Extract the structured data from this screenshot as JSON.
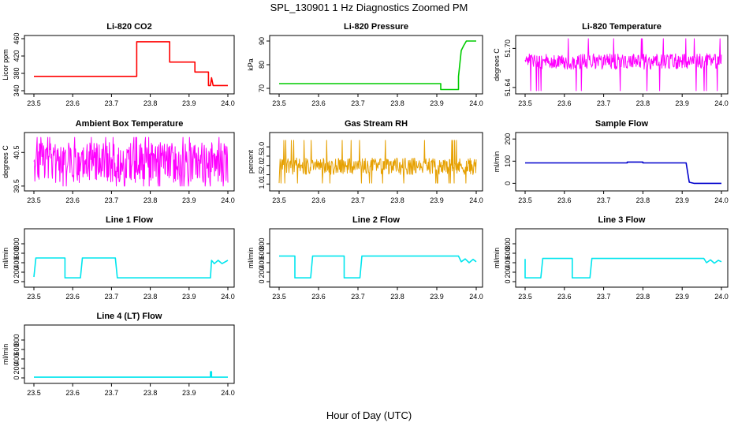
{
  "figure": {
    "title": "SPL_130901  1 Hz Diagnostics Zoomed PM",
    "xlabel": "Hour of Day (UTC)"
  },
  "chart_data": [
    {
      "type": "line",
      "title": "Li-820 CO2",
      "ylabel": "Licor ppm",
      "color": "#ff0000",
      "xlim": [
        23.5,
        24.0
      ],
      "ylim": [
        340,
        460
      ],
      "xticks": [
        "23.5",
        "23.6",
        "23.7",
        "23.8",
        "23.9",
        "24.0"
      ],
      "yticks": [
        "340",
        "380",
        "420",
        "460"
      ],
      "series": [
        {
          "name": "CO2",
          "style": "step",
          "x": [
            23.5,
            23.765,
            23.765,
            23.85,
            23.85,
            23.915,
            23.915,
            23.95,
            23.95,
            23.955,
            23.958,
            23.962,
            24.0
          ],
          "y": [
            373,
            373,
            453,
            453,
            406,
            406,
            383,
            383,
            352,
            352,
            370,
            352,
            352
          ]
        }
      ]
    },
    {
      "type": "line",
      "title": "Li-820 Pressure",
      "ylabel": "kPa",
      "color": "#00cc00",
      "xlim": [
        23.5,
        24.0
      ],
      "ylim": [
        69,
        91
      ],
      "xticks": [
        "23.5",
        "23.6",
        "23.7",
        "23.8",
        "23.9",
        "24.0"
      ],
      "yticks": [
        "70",
        "80",
        "90"
      ],
      "series": [
        {
          "name": "Pressure",
          "style": "step",
          "x": [
            23.5,
            23.91,
            23.91,
            23.955,
            23.955,
            23.962,
            23.968,
            23.975,
            24.0
          ],
          "y": [
            72,
            72,
            69.5,
            69.5,
            75,
            86,
            88,
            90,
            90
          ]
        }
      ]
    },
    {
      "type": "line",
      "title": "Li-820 Temperature",
      "ylabel": "degrees C",
      "color": "#ff00ff",
      "xlim": [
        23.5,
        24.0
      ],
      "ylim": [
        51.635,
        51.715
      ],
      "xticks": [
        "23.5",
        "23.6",
        "23.7",
        "23.8",
        "23.9",
        "24.0"
      ],
      "yticks": [
        "51.64",
        "51.70"
      ],
      "series": [
        {
          "name": "Temperature",
          "style": "noise",
          "x": [
            23.5,
            24.0
          ],
          "center": 51.68,
          "amp": 0.012,
          "low": 51.635,
          "high": 51.715,
          "n": 420
        }
      ]
    },
    {
      "type": "line",
      "title": "Ambient Box Temperature",
      "ylabel": "degrees C",
      "color": "#ff00ff",
      "xlim": [
        23.5,
        24.0
      ],
      "ylim": [
        39.45,
        41.0
      ],
      "xticks": [
        "23.5",
        "23.6",
        "23.7",
        "23.8",
        "23.9",
        "24.0"
      ],
      "yticks": [
        "39.5",
        "40.5"
      ],
      "series": [
        {
          "name": "Ambient",
          "style": "noise",
          "x": [
            23.5,
            24.0
          ],
          "center": 40.2,
          "amp": 0.6,
          "low": 39.5,
          "high": 40.95,
          "n": 420
        }
      ]
    },
    {
      "type": "line",
      "title": "Gas Stream RH",
      "ylabel": "percent",
      "color": "#e6a000",
      "xlim": [
        23.5,
        24.0
      ],
      "ylim": [
        0.8,
        3.6
      ],
      "xticks": [
        "23.5",
        "23.6",
        "23.7",
        "23.8",
        "23.9",
        "24.0"
      ],
      "yticks": [
        "1.0",
        "1.5",
        "2.0",
        "2.5",
        "3.0"
      ],
      "series": [
        {
          "name": "RH",
          "style": "noise",
          "x": [
            23.5,
            24.0
          ],
          "center": 1.95,
          "amp": 0.45,
          "low": 1.05,
          "high": 3.35,
          "n": 420
        }
      ]
    },
    {
      "type": "line",
      "title": "Sample Flow",
      "ylabel": "ml/min",
      "color": "#0000cc",
      "xlim": [
        23.5,
        24.0
      ],
      "ylim": [
        -20,
        215
      ],
      "xticks": [
        "23.5",
        "23.6",
        "23.7",
        "23.8",
        "23.9",
        "24.0"
      ],
      "yticks": [
        "0",
        "100",
        "200"
      ],
      "series": [
        {
          "name": "Flow",
          "style": "step",
          "x": [
            23.5,
            23.76,
            23.76,
            23.8,
            23.8,
            23.91,
            23.918,
            23.93,
            24.0
          ],
          "y": [
            92,
            92,
            96,
            96,
            92,
            92,
            5,
            0,
            0
          ]
        }
      ]
    },
    {
      "type": "line",
      "title": "Line 1 Flow",
      "ylabel": "ml/min",
      "color": "#00e5ee",
      "xlim": [
        23.5,
        24.0
      ],
      "ylim": [
        -50,
        1050
      ],
      "xticks": [
        "23.5",
        "23.6",
        "23.7",
        "23.8",
        "23.9",
        "24.0"
      ],
      "yticks": [
        "0",
        "200",
        "400",
        "600",
        "800"
      ],
      "series": [
        {
          "name": "Line1",
          "style": "step",
          "x": [
            23.5,
            23.505,
            23.58,
            23.58,
            23.62,
            23.625,
            23.71,
            23.715,
            23.955,
            23.958,
            23.965,
            23.975,
            23.985,
            24.0
          ],
          "y": [
            100,
            500,
            500,
            80,
            80,
            500,
            500,
            80,
            80,
            450,
            380,
            450,
            380,
            450
          ]
        }
      ]
    },
    {
      "type": "line",
      "title": "Line 2 Flow",
      "ylabel": "ml/min",
      "color": "#00e5ee",
      "xlim": [
        23.5,
        24.0
      ],
      "ylim": [
        -50,
        1050
      ],
      "xticks": [
        "23.5",
        "23.6",
        "23.7",
        "23.8",
        "23.9",
        "24.0"
      ],
      "yticks": [
        "0",
        "200",
        "400",
        "600",
        "800"
      ],
      "series": [
        {
          "name": "Line2",
          "style": "step",
          "x": [
            23.5,
            23.54,
            23.54,
            23.58,
            23.585,
            23.665,
            23.665,
            23.705,
            23.71,
            23.955,
            23.962,
            23.972,
            23.982,
            23.992,
            24.0
          ],
          "y": [
            540,
            540,
            80,
            80,
            540,
            540,
            80,
            80,
            540,
            540,
            420,
            480,
            400,
            470,
            420
          ]
        }
      ]
    },
    {
      "type": "line",
      "title": "Line 3 Flow",
      "ylabel": "ml/min",
      "color": "#00e5ee",
      "xlim": [
        23.5,
        24.0
      ],
      "ylim": [
        -50,
        1050
      ],
      "xticks": [
        "23.5",
        "23.6",
        "23.7",
        "23.8",
        "23.9",
        "24.0"
      ],
      "yticks": [
        "0",
        "200",
        "400",
        "600",
        "800"
      ],
      "series": [
        {
          "name": "Line3",
          "style": "step",
          "x": [
            23.5,
            23.5,
            23.54,
            23.545,
            23.62,
            23.62,
            23.665,
            23.67,
            23.955,
            23.962,
            23.972,
            23.982,
            23.992,
            24.0
          ],
          "y": [
            480,
            80,
            80,
            490,
            490,
            80,
            80,
            490,
            490,
            400,
            460,
            390,
            450,
            420
          ]
        }
      ]
    },
    {
      "type": "line",
      "title": "Line 4 (LT) Flow",
      "ylabel": "ml/min",
      "color": "#00e5ee",
      "xlim": [
        23.5,
        24.0
      ],
      "ylim": [
        -50,
        1050
      ],
      "xticks": [
        "23.5",
        "23.6",
        "23.7",
        "23.8",
        "23.9",
        "24.0"
      ],
      "yticks": [
        "0",
        "200",
        "400",
        "600",
        "800"
      ],
      "series": [
        {
          "name": "Line4",
          "style": "step",
          "x": [
            23.5,
            23.955,
            23.955,
            23.958,
            23.958,
            24.0
          ],
          "y": [
            15,
            15,
            130,
            130,
            15,
            15
          ]
        }
      ]
    }
  ]
}
